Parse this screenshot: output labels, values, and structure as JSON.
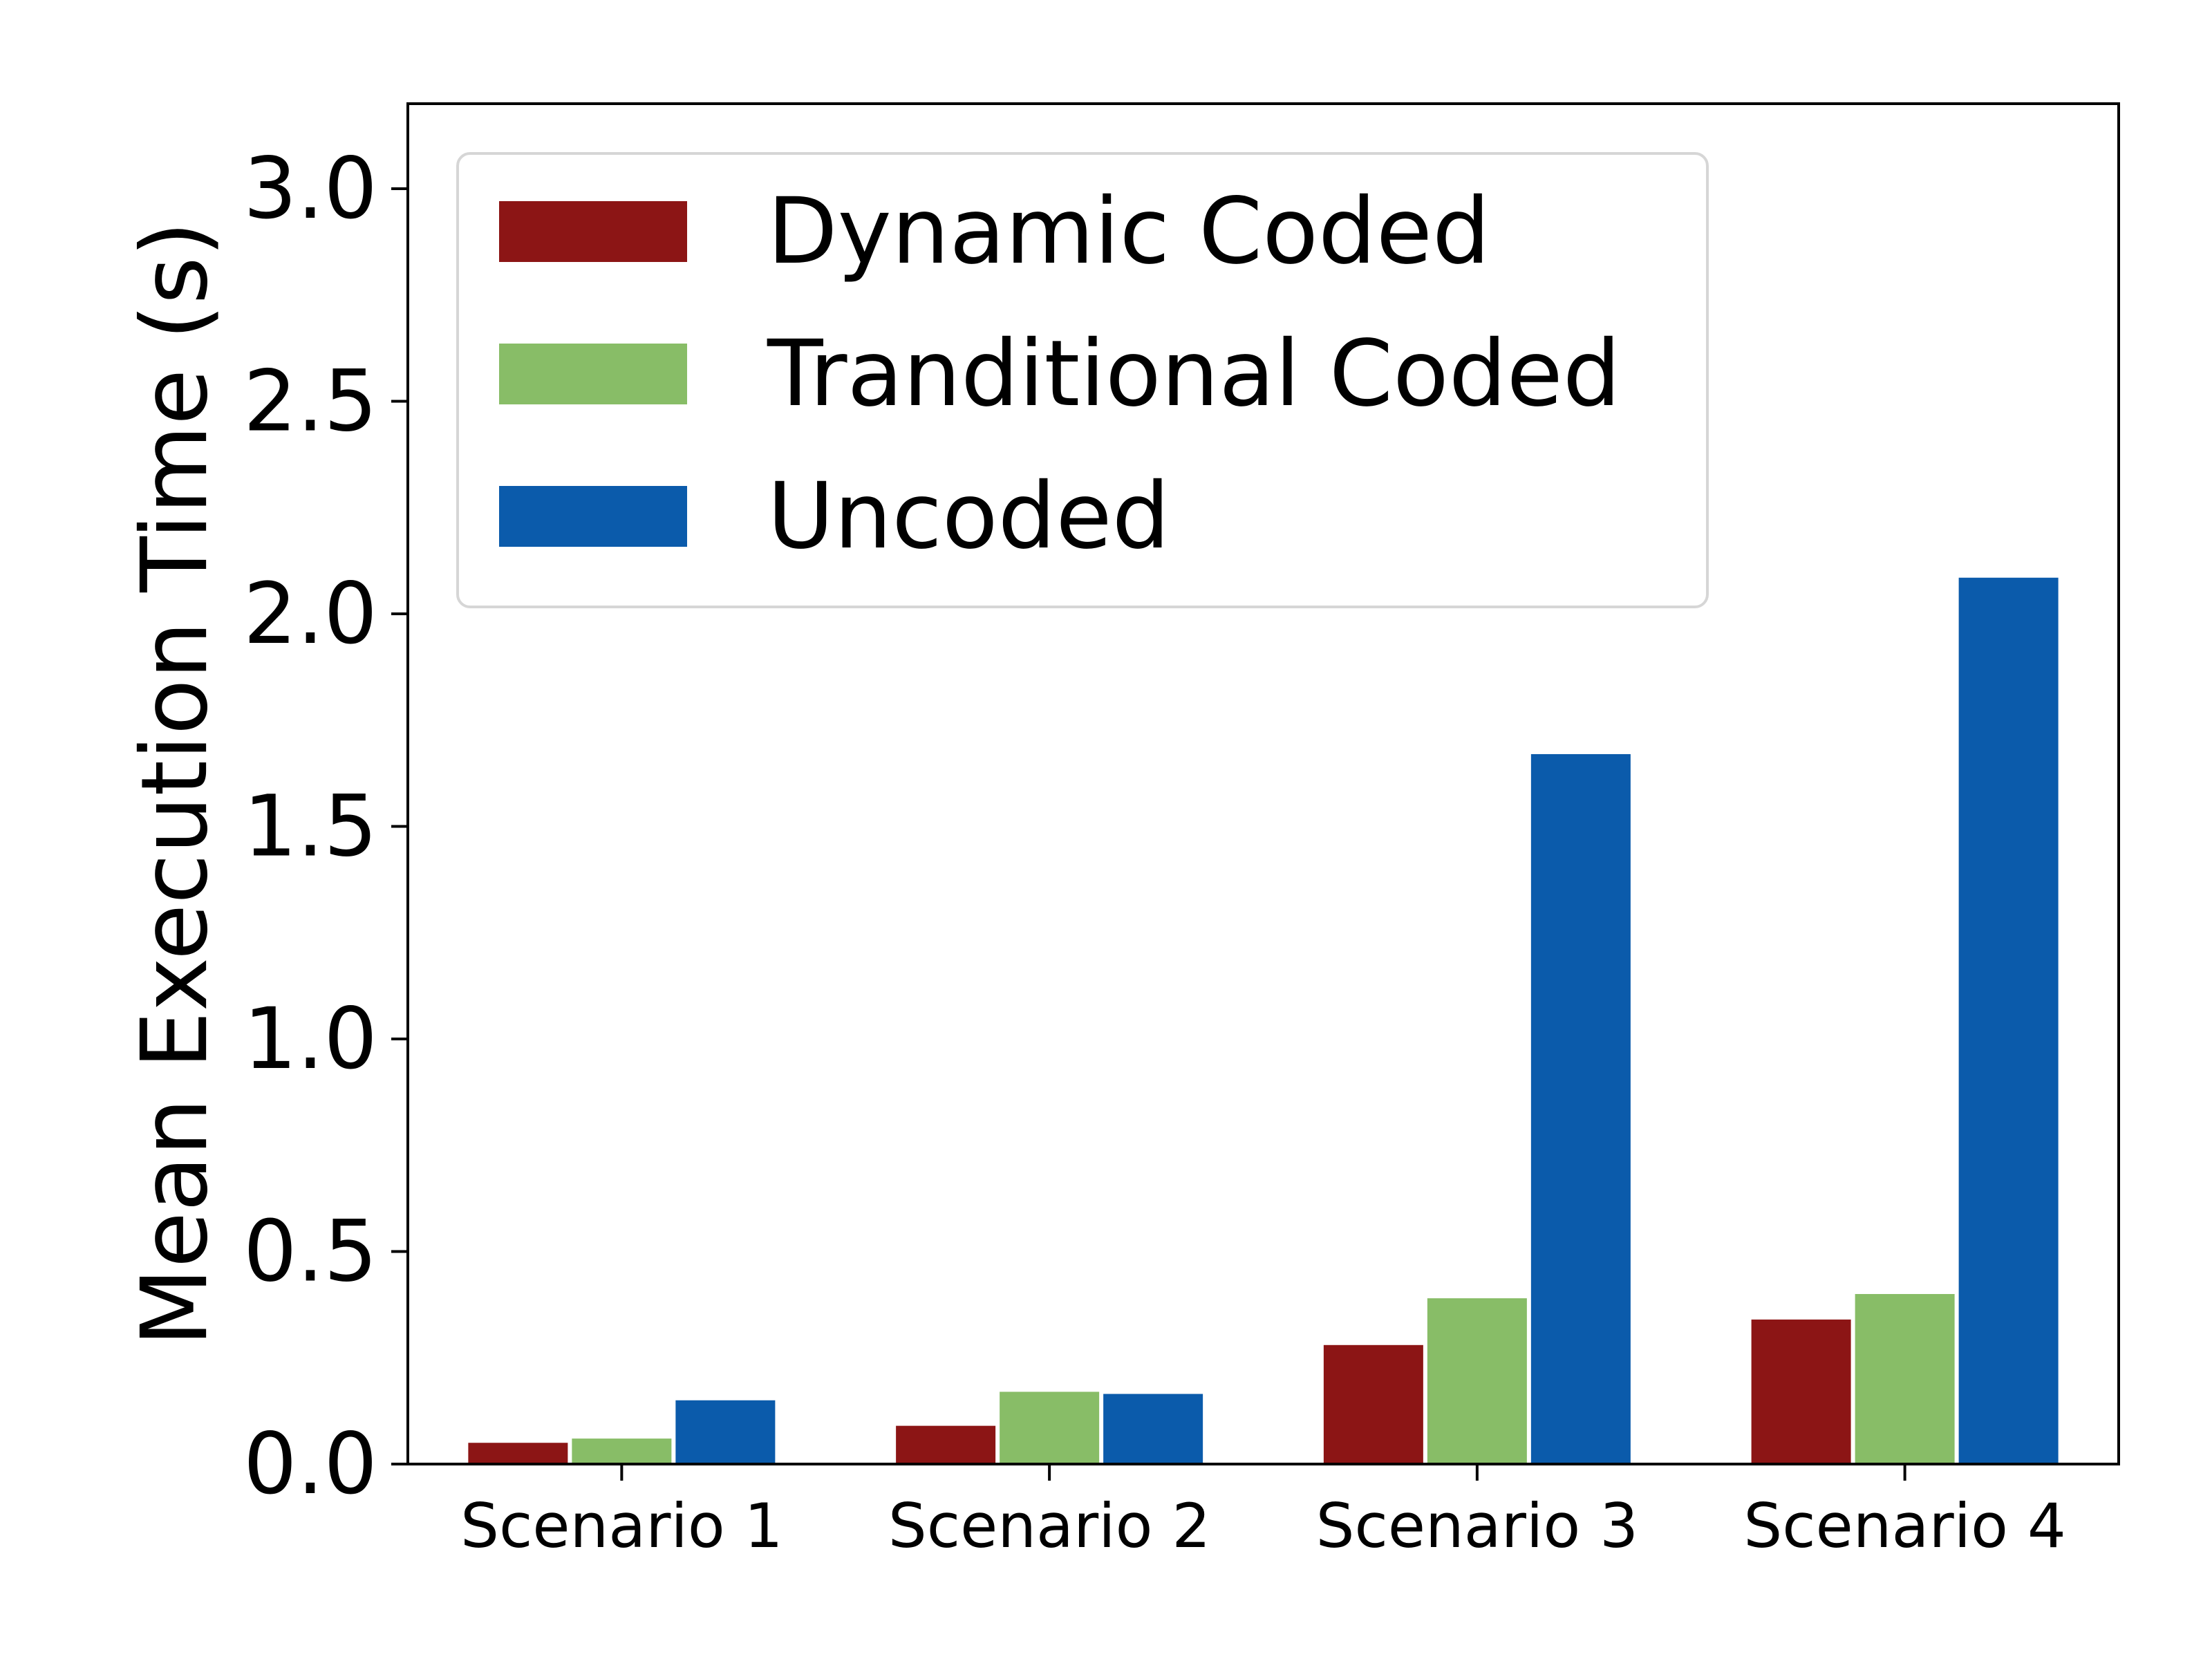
{
  "chart_data": {
    "type": "bar",
    "title": "",
    "xlabel": "",
    "ylabel": "Mean Execution Time (s)",
    "categories": [
      "Scenario 1",
      "Scenario 2",
      "Scenario 3",
      "Scenario 4"
    ],
    "series": [
      {
        "name": "Dynamic Coded",
        "color": "#8c1515",
        "values": [
          0.05,
          0.09,
          0.28,
          0.34
        ]
      },
      {
        "name": "Tranditional Coded",
        "color": "#88bd67",
        "values": [
          0.06,
          0.17,
          0.39,
          0.4
        ]
      },
      {
        "name": "Uncoded",
        "color": "#0b5bab",
        "values": [
          0.15,
          0.165,
          1.67,
          2.085
        ]
      }
    ],
    "ylim": [
      0,
      3.2
    ],
    "yticks": [
      "0.0",
      "0.5",
      "1.0",
      "1.5",
      "2.0",
      "2.5",
      "3.0"
    ],
    "grid": false,
    "legend_position": "top-left"
  }
}
